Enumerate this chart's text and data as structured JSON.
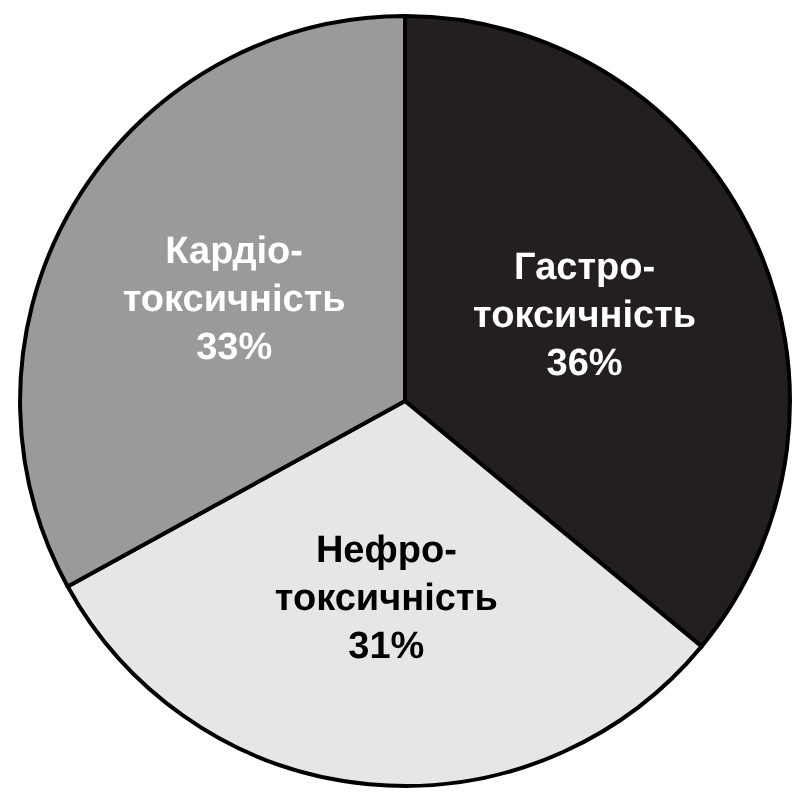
{
  "chart_data": {
    "type": "pie",
    "categories": [
      "Гастро-токсичність",
      "Нефро-токсичність",
      "Кардіо-токсичність"
    ],
    "values": [
      36,
      31,
      33
    ],
    "value_labels": [
      "36%",
      "31%",
      "33%"
    ],
    "colors": [
      "#231f20",
      "#e6e6e6",
      "#9a9a9a"
    ],
    "legend": false
  }
}
